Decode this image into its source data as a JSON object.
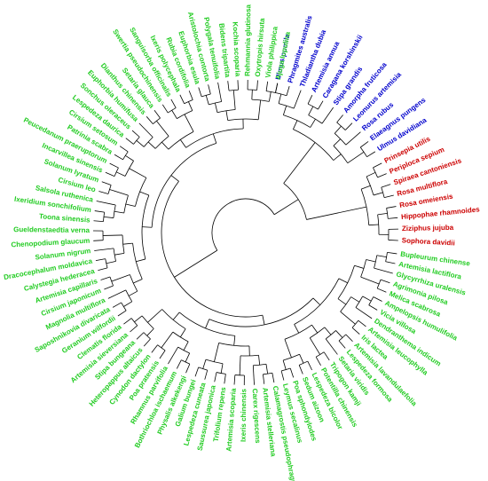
{
  "groups": [
    {
      "color": "#0000cc",
      "leaves": [
        "Ulmus pumila",
        "Phragmites australis",
        "Thladiantha dubia",
        "Artemisia annua",
        "Caragana korshinskii",
        "Stipa grandis",
        "Amorpha fruticosa",
        "Leonurus artemisia",
        "Rosa rubus",
        "Elaeagnus pungens",
        "Ulmus davidiana"
      ]
    },
    {
      "color": "#cc0000",
      "leaves": [
        "Prinsepia utilis",
        "Periploca sepium",
        "Spiraea cantoniensis",
        "Rosa multiflora",
        "Rosa omeiensis",
        "Hippophae rhamnoides",
        "Ziziphus jujuba",
        "Sophora davidii"
      ]
    },
    {
      "color": "#22cc22",
      "leaves": [
        "Bupleurum chinense",
        "Artemisia lactiflora",
        "Glycyrrhiza uralensis",
        "Agrimonia pilosa",
        "Melica scabrosa",
        "Ampelopsis humulifolia",
        "Vicia villosa",
        "Dendranthema indicum",
        "Artemisia leucophylla",
        "Iris lactea",
        "Artemisia lavandulaefolia",
        "Lespedeza formosa",
        "Setaria viridis",
        "Tripogon kamji",
        "Potentilla chinensis",
        "Lespedeza bicolor",
        "Sedum aizoon",
        "Poa sphondylodes",
        "Leymus secalinus",
        "Calamagrostis pseudophragmites",
        "Artemisia stelleriana",
        "Carex rigescens",
        "Ixeris chinensis",
        "Artemisia scoparia",
        "Trifolium repens",
        "Saussurea japonica",
        "Lespedeza cuneata",
        "Galium bungei",
        "Physalis alkekengi",
        "Bothriochloa ischaemum",
        "Rhamnus parvifolia",
        "Poa pratensis",
        "Cynodon dactylon",
        "Heteropappus altaicus",
        "Stipa bungeana",
        "Artemisia sieversiana",
        "Clematis florida",
        "Geranium wilfordii",
        "Saposhnikovia divaricata",
        "Magnolia multiflora",
        "Cirsium japonicum",
        "Artemisia capillaris",
        "Calystegia hederacea",
        "Dracocephalum moldavica",
        "Solanum nigrum",
        "Chenopodium glaucum",
        "Gueldenstaedtia verna",
        "Toona sinensis",
        "Ixeridium sonchifolium",
        "Salsola ruthenica",
        "Cirsium leo",
        "Solanum lyratum",
        "Incarvillea sinensis",
        "Peucedanum praeruptorum",
        "Patrinia scabra",
        "Cirsium setosum",
        "Lespedeza daurica",
        "Sonchus oleraceus",
        "Euphorbia humifusa",
        "Dianthus chinensis",
        "Setaria glauca",
        "Swertia pseudochinensis",
        "Sanguisorba officinalis",
        "Ixeris polycephala",
        "Rubia cordifolia",
        "Euphorbia esula",
        "Aristolochia contorta",
        "Polygala tenuifolia",
        "Bidens tripartita",
        "Kochia scoparia",
        "Rehmannia glutinosa",
        "Oxytropis hirsuta",
        "Viola philippica",
        "Ajuga lupulina"
      ]
    }
  ]
}
